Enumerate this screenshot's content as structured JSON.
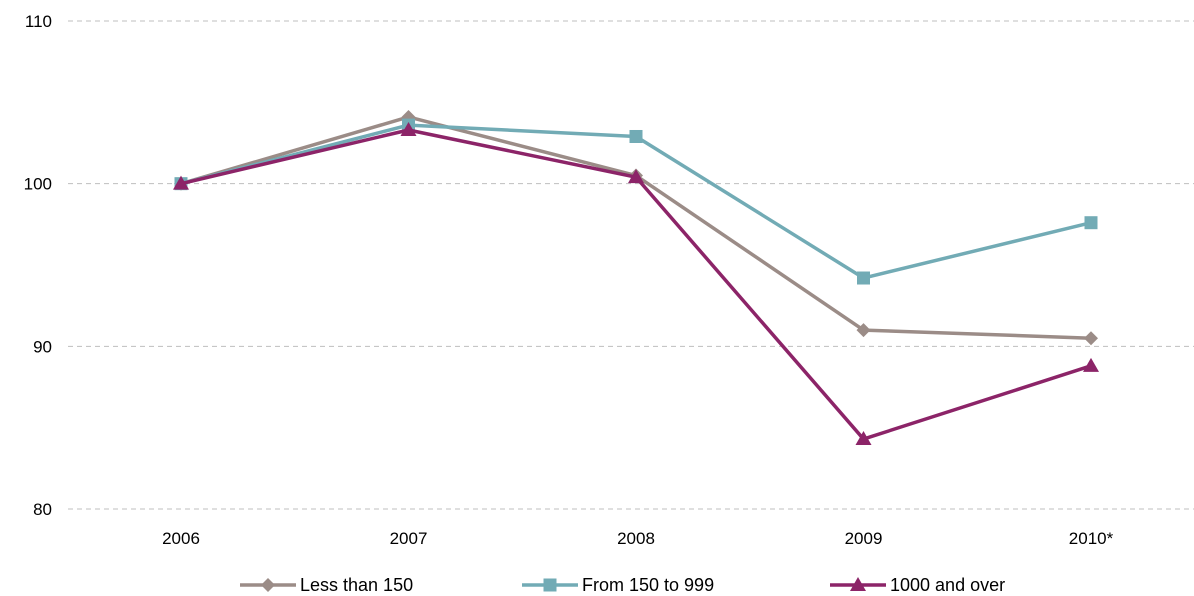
{
  "chart_data": {
    "type": "line",
    "title": "",
    "xlabel": "",
    "ylabel": "",
    "categories": [
      "2006",
      "2007",
      "2008",
      "2009",
      "2010*"
    ],
    "ylim": [
      80,
      110
    ],
    "yticks": [
      "80",
      "90",
      "100",
      "110"
    ],
    "grid": true,
    "legend_position": "bottom",
    "series": [
      {
        "name": "Less than 150",
        "values": [
          100,
          104.1,
          100.5,
          91.0,
          90.5
        ],
        "color": "#9b8c87",
        "marker": "diamond"
      },
      {
        "name": "From 150 to 999",
        "values": [
          100,
          103.6,
          102.9,
          94.2,
          97.6
        ],
        "color": "#72abb5",
        "marker": "square"
      },
      {
        "name": "1000 and over",
        "values": [
          100,
          103.3,
          100.4,
          84.3,
          88.8
        ],
        "color": "#8c2468",
        "marker": "triangle"
      }
    ]
  }
}
